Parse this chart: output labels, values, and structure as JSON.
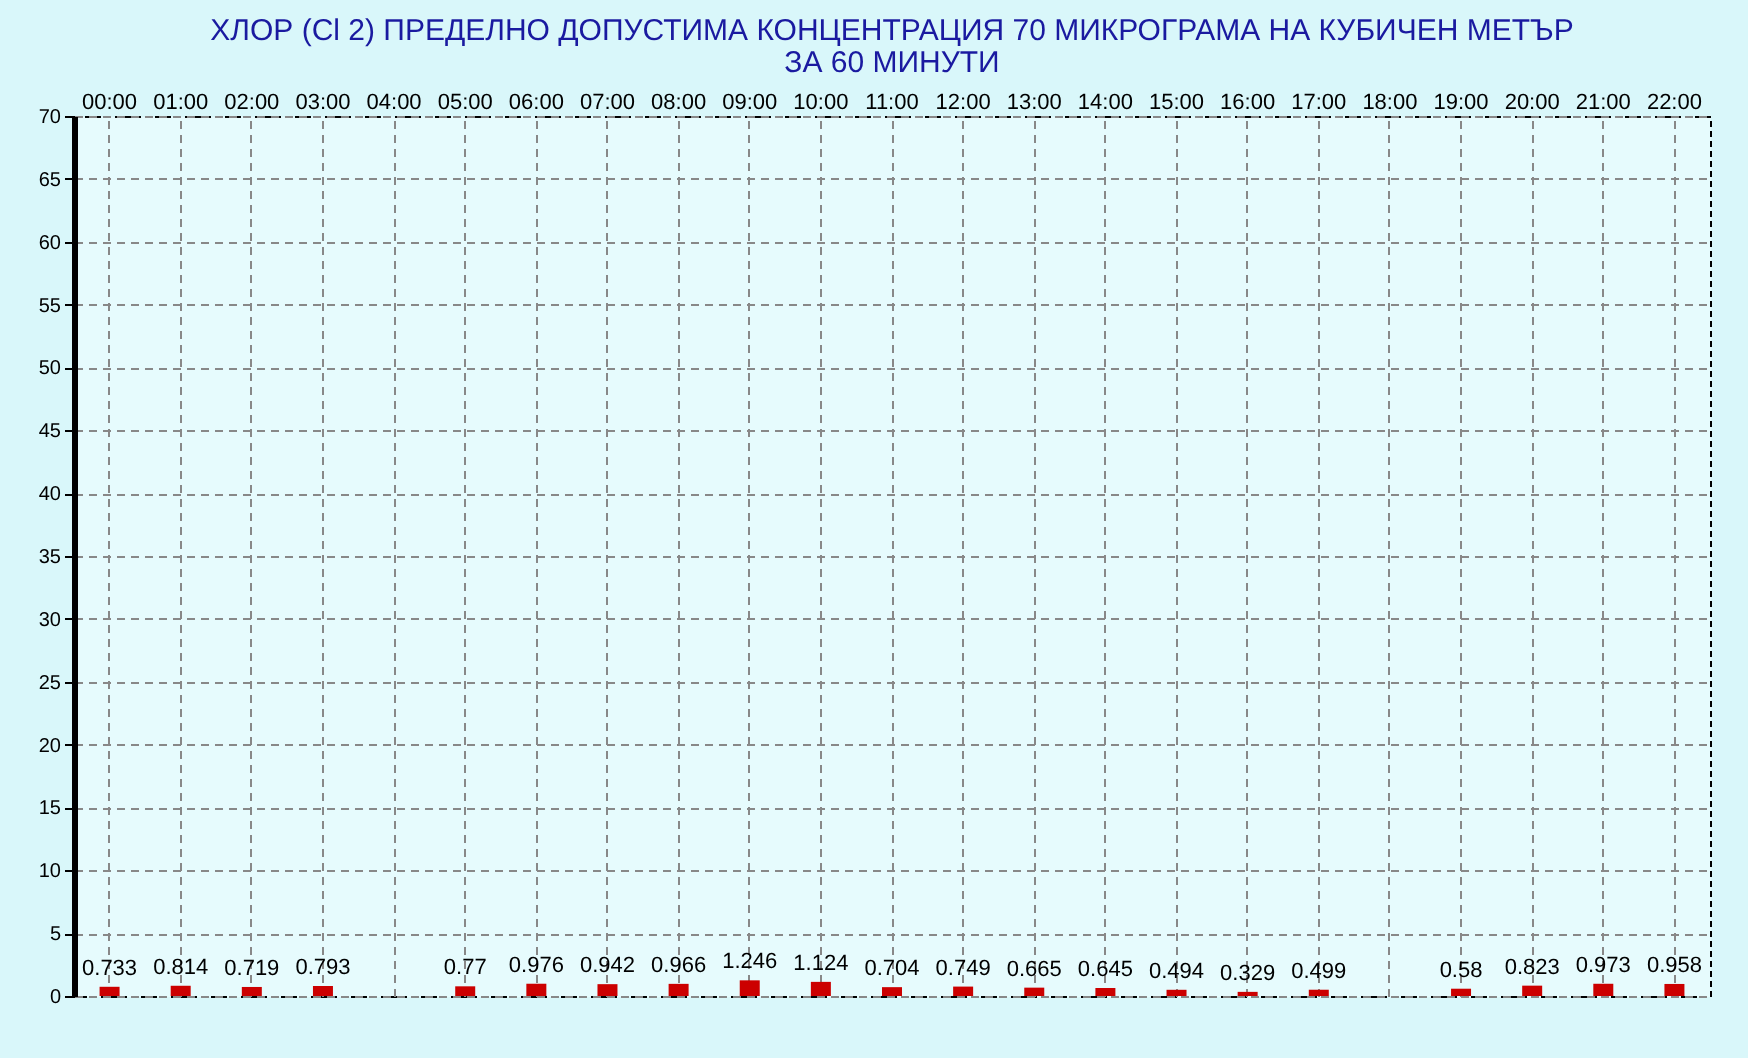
{
  "chart_data": {
    "type": "bar",
    "title": "ХЛОР  (Cl 2)    ПРЕДЕЛНО ДОПУСТИМА КОНЦЕНТРАЦИЯ 70 МИКРОГРАМА  НА КУБИЧЕН МЕТЪР",
    "subtitle": "ЗА 60 МИНУТИ",
    "categories": [
      "00:00",
      "01:00",
      "02:00",
      "03:00",
      "04:00",
      "05:00",
      "06:00",
      "07:00",
      "08:00",
      "09:00",
      "10:00",
      "11:00",
      "12:00",
      "13:00",
      "14:00",
      "15:00",
      "16:00",
      "17:00",
      "18:00",
      "19:00",
      "20:00",
      "21:00",
      "22:00"
    ],
    "values": [
      0.733,
      0.814,
      0.719,
      0.793,
      null,
      0.77,
      0.976,
      0.942,
      0.966,
      1.246,
      1.124,
      0.704,
      0.749,
      0.665,
      0.645,
      0.494,
      0.329,
      0.499,
      null,
      0.58,
      0.823,
      0.973,
      0.958
    ],
    "color": "#cc0000",
    "ylim": [
      0,
      70
    ],
    "yticks": [
      0,
      5,
      10,
      15,
      20,
      25,
      30,
      35,
      40,
      45,
      50,
      55,
      60,
      65,
      70
    ],
    "grid": true,
    "data_labels": true
  }
}
